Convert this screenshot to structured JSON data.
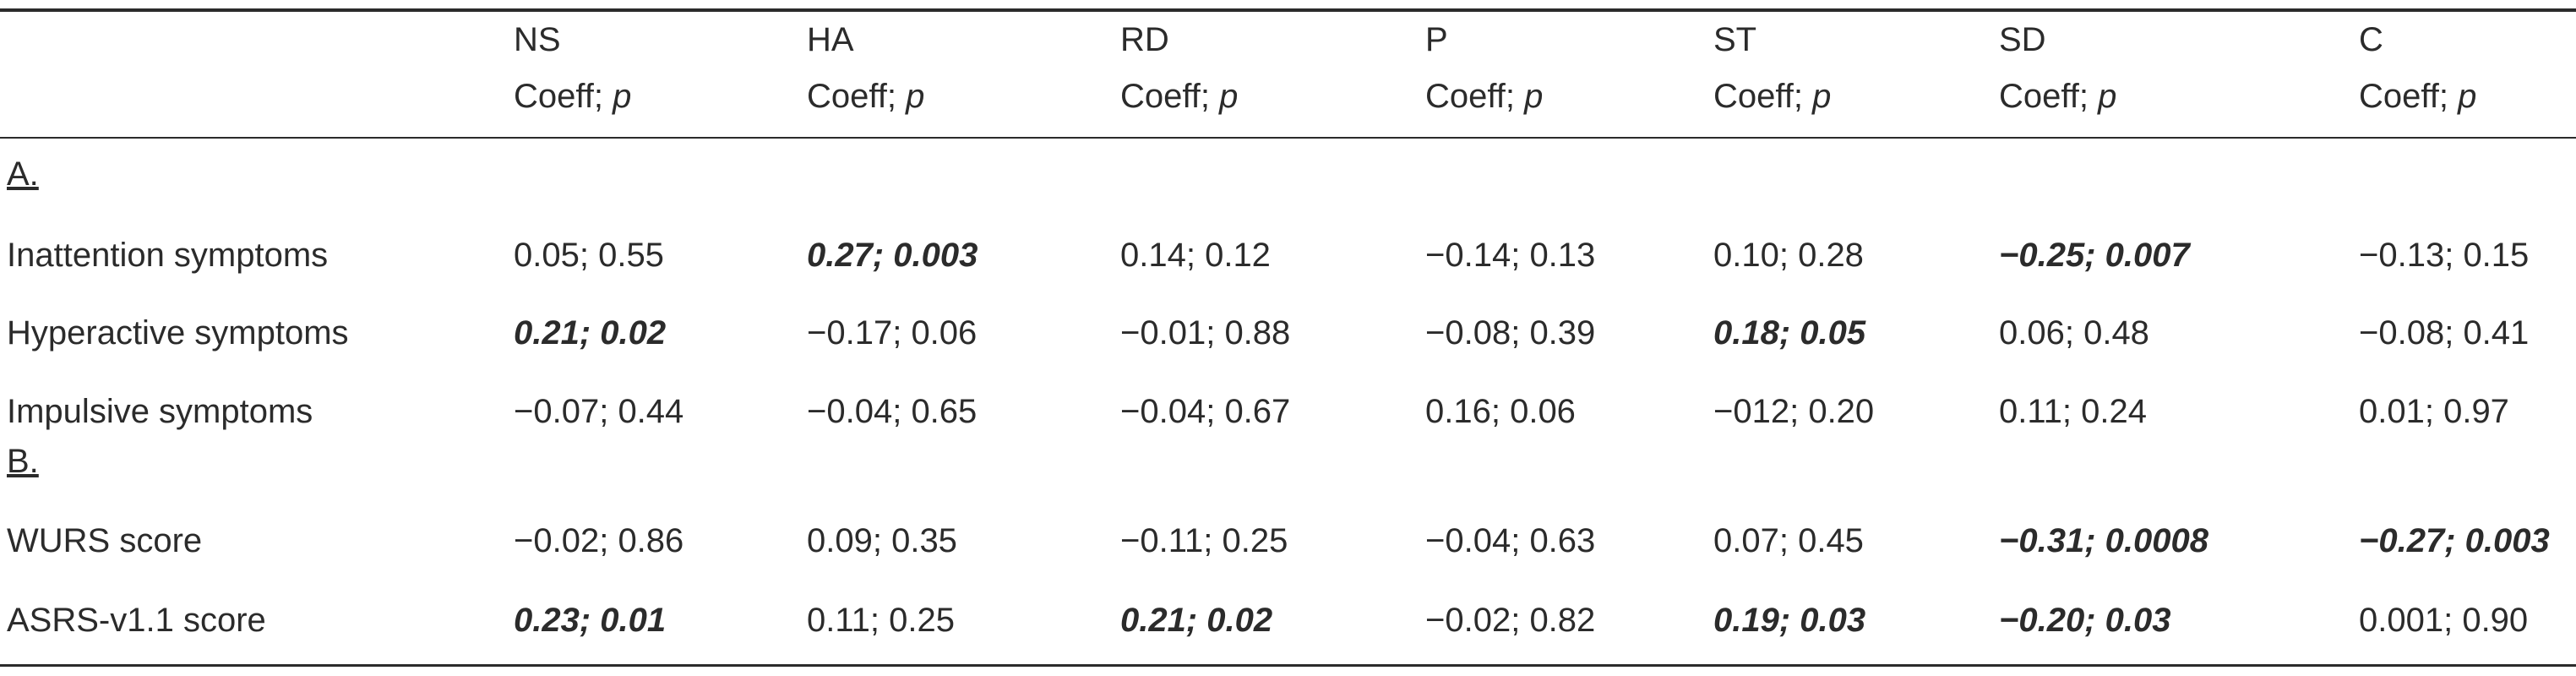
{
  "columns": [
    {
      "key": "ns",
      "label": "NS",
      "sublabel": "Coeff; ",
      "sublabel_p": "p"
    },
    {
      "key": "ha",
      "label": "HA",
      "sublabel": "Coeff; ",
      "sublabel_p": "p"
    },
    {
      "key": "rd",
      "label": "RD",
      "sublabel": "Coeff; ",
      "sublabel_p": "p"
    },
    {
      "key": "p",
      "label": "P",
      "sublabel": "Coeff; ",
      "sublabel_p": "p"
    },
    {
      "key": "st",
      "label": "ST",
      "sublabel": "Coeff; ",
      "sublabel_p": "p"
    },
    {
      "key": "sd",
      "label": "SD",
      "sublabel": "Coeff; ",
      "sublabel_p": "p"
    },
    {
      "key": "c",
      "label": "C",
      "sublabel": "Coeff; ",
      "sublabel_p": "p"
    }
  ],
  "sections": [
    {
      "label": "A.",
      "rows": [
        {
          "label": "Inattention symptoms",
          "cells": [
            {
              "text": "0.05; 0.55",
              "bold": false
            },
            {
              "text": "0.27; 0.003",
              "bold": true
            },
            {
              "text": "0.14; 0.12",
              "bold": false
            },
            {
              "text": "−0.14; 0.13",
              "bold": false
            },
            {
              "text": "0.10; 0.28",
              "bold": false
            },
            {
              "text": "−0.25; 0.007",
              "bold": true
            },
            {
              "text": "−0.13; 0.15",
              "bold": false
            }
          ]
        },
        {
          "label": "Hyperactive symptoms",
          "cells": [
            {
              "text": "0.21; 0.02",
              "bold": true
            },
            {
              "text": "−0.17; 0.06",
              "bold": false
            },
            {
              "text": "−0.01; 0.88",
              "bold": false
            },
            {
              "text": "−0.08; 0.39",
              "bold": false
            },
            {
              "text": "0.18; 0.05",
              "bold": true
            },
            {
              "text": "0.06; 0.48",
              "bold": false
            },
            {
              "text": "−0.08; 0.41",
              "bold": false
            }
          ]
        },
        {
          "label": "Impulsive symptoms",
          "cells": [
            {
              "text": "−0.07; 0.44",
              "bold": false
            },
            {
              "text": "−0.04; 0.65",
              "bold": false
            },
            {
              "text": "−0.04; 0.67",
              "bold": false
            },
            {
              "text": "0.16; 0.06",
              "bold": false
            },
            {
              "text": "−012; 0.20",
              "bold": false
            },
            {
              "text": "0.11; 0.24",
              "bold": false
            },
            {
              "text": "0.01; 0.97",
              "bold": false
            }
          ]
        }
      ]
    },
    {
      "label": "B.",
      "rows": [
        {
          "label": "WURS score",
          "cells": [
            {
              "text": "−0.02; 0.86",
              "bold": false
            },
            {
              "text": "0.09; 0.35",
              "bold": false
            },
            {
              "text": "−0.11; 0.25",
              "bold": false
            },
            {
              "text": "−0.04; 0.63",
              "bold": false
            },
            {
              "text": "0.07; 0.45",
              "bold": false
            },
            {
              "text": "−0.31; 0.0008",
              "bold": true
            },
            {
              "text": "−0.27; 0.003",
              "bold": true
            }
          ]
        },
        {
          "label": "ASRS-v1.1 score",
          "cells": [
            {
              "text": "0.23; 0.01",
              "bold": true
            },
            {
              "text": "0.11; 0.25",
              "bold": false
            },
            {
              "text": "0.21; 0.02",
              "bold": true
            },
            {
              "text": "−0.02; 0.82",
              "bold": false
            },
            {
              "text": "0.19; 0.03",
              "bold": true
            },
            {
              "text": "−0.20; 0.03",
              "bold": true
            },
            {
              "text": "0.001; 0.90",
              "bold": false
            }
          ]
        }
      ]
    }
  ]
}
